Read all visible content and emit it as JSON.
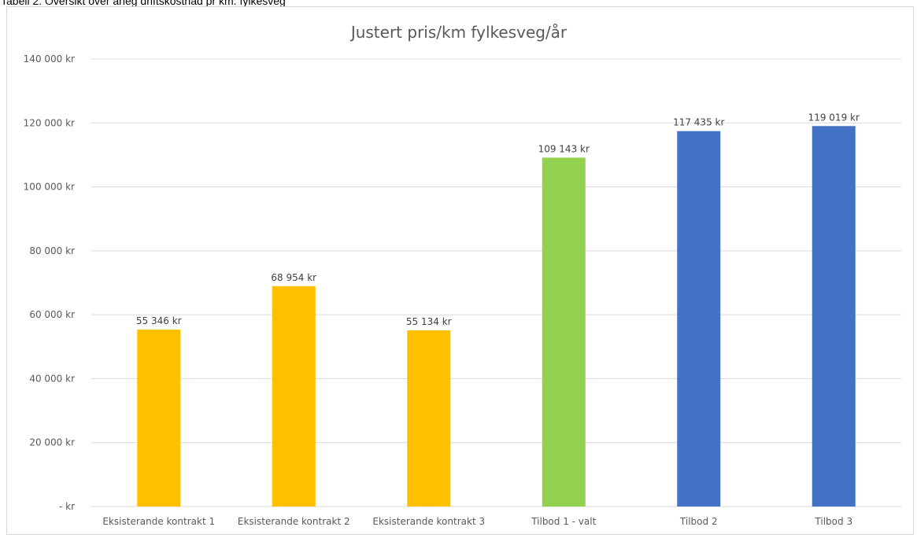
{
  "caption": "Tabell 2: Oversikt over årleg driftskostnad pr km. fylkesveg",
  "chart_data": {
    "type": "bar",
    "title": "Justert pris/km fylkesveg/år",
    "xlabel": "",
    "ylabel": "",
    "ylim": [
      0,
      140000
    ],
    "yticks": [
      0,
      20000,
      40000,
      60000,
      80000,
      100000,
      120000,
      140000
    ],
    "ytick_labels": [
      "-   kr",
      "20 000 kr",
      "40 000 kr",
      "60 000 kr",
      "80 000 kr",
      "100 000 kr",
      "120 000 kr",
      "140 000 kr"
    ],
    "grid": true,
    "legend": "none",
    "categories": [
      "Eksisterande kontrakt 1",
      "Eksisterande kontrakt 2",
      "Eksisterande kontrakt 3",
      "Tilbod 1 - valt",
      "Tilbod 2",
      "Tilbod 3"
    ],
    "values": [
      55346,
      68954,
      55134,
      109143,
      117435,
      119019
    ],
    "data_labels": [
      "55 346 kr",
      "68 954 kr",
      "55 134 kr",
      "109 143 kr",
      "117 435 kr",
      "119 019 kr"
    ],
    "colors": [
      "#FFC000",
      "#FFC000",
      "#FFC000",
      "#92D050",
      "#4472C4",
      "#4472C4"
    ],
    "gridline_color": "#d9d9d9"
  }
}
